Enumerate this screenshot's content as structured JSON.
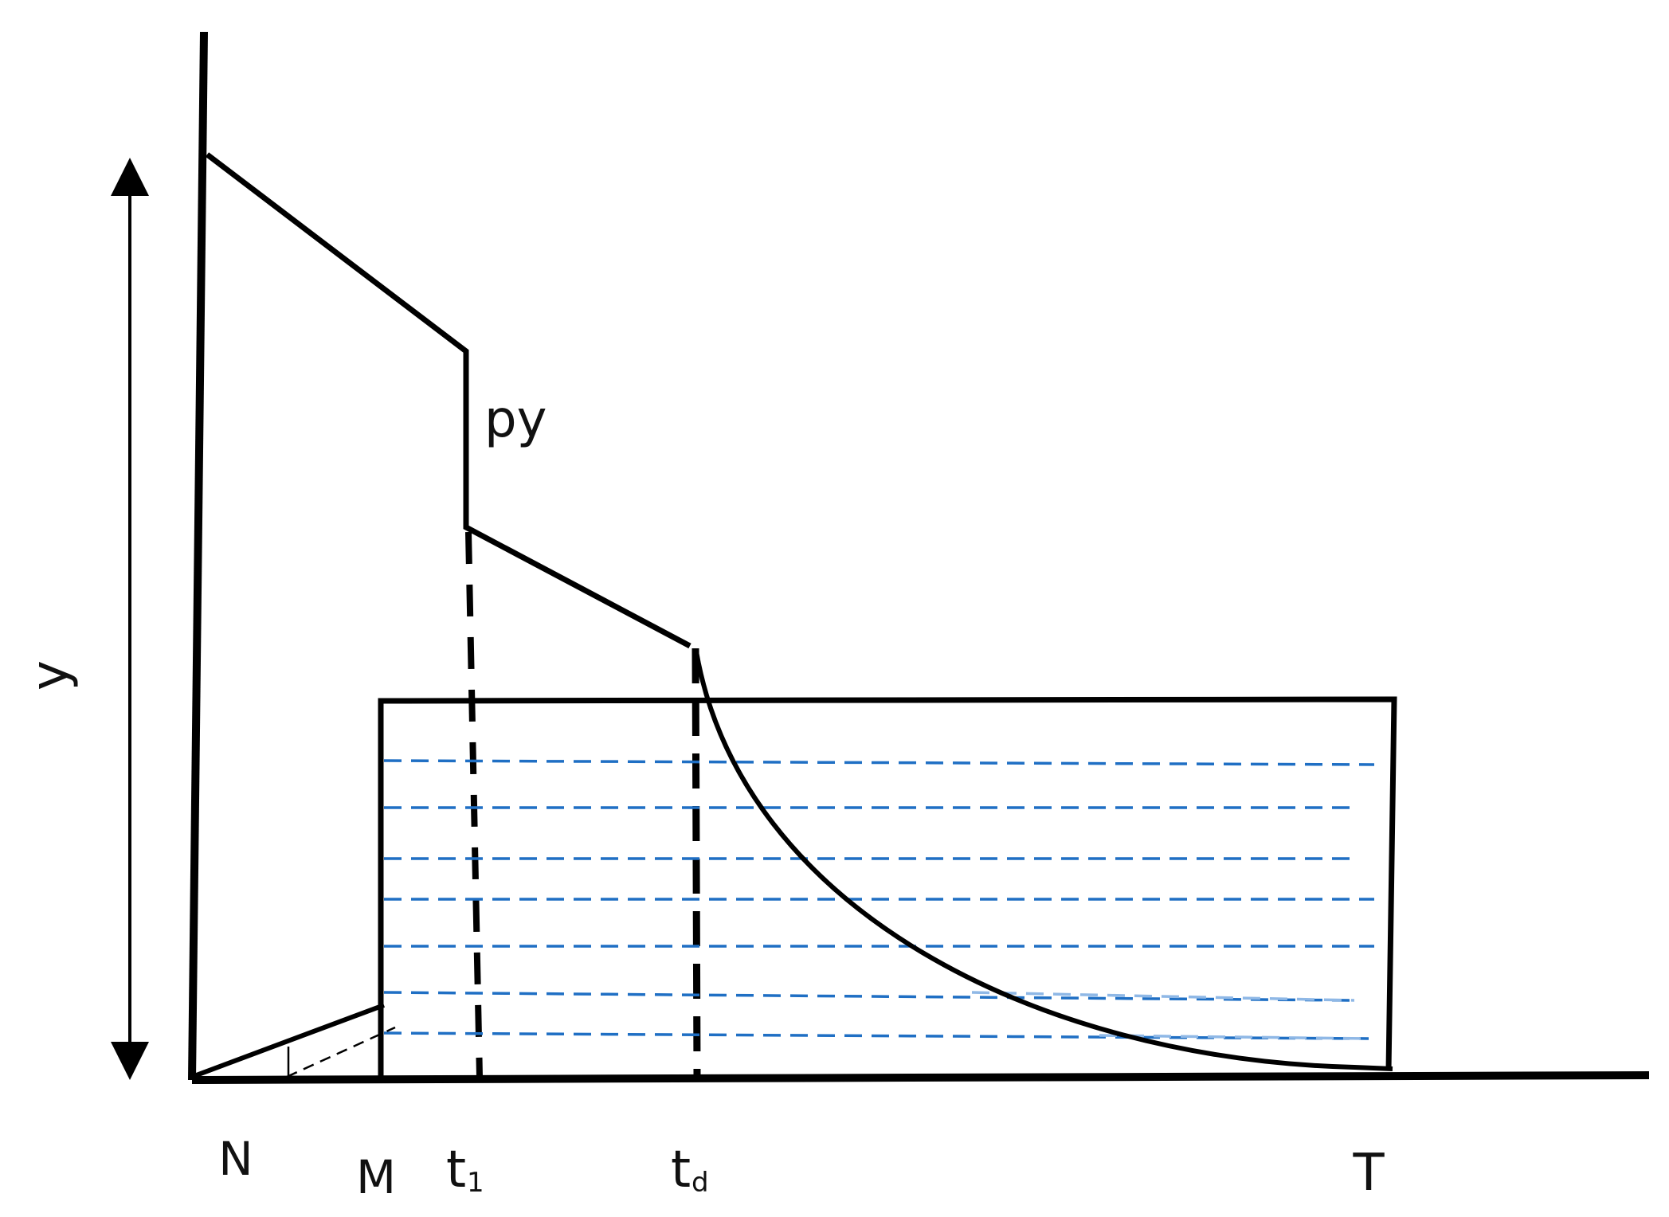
{
  "labels": {
    "y_axis": "y",
    "py": "py",
    "N": "N",
    "M": "M",
    "t1_base": "t",
    "t1_sub": "1",
    "td_base": "t",
    "td_sub": "d",
    "T": "T"
  },
  "colors": {
    "line": "#000000",
    "hatch": "#1f6fc4",
    "hatch_light": "#8fb8e6",
    "background": "#ffffff"
  },
  "icons": {
    "arrow": "double-headed-vertical-arrow"
  }
}
